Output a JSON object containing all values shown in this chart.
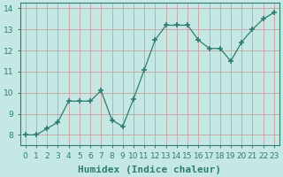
{
  "x": [
    0,
    1,
    2,
    3,
    4,
    5,
    6,
    7,
    8,
    9,
    10,
    11,
    12,
    13,
    14,
    15,
    16,
    17,
    18,
    19,
    20,
    21,
    22,
    23
  ],
  "y": [
    8.0,
    8.0,
    8.3,
    8.6,
    9.6,
    9.6,
    9.6,
    10.1,
    8.7,
    8.4,
    9.7,
    11.1,
    12.5,
    13.2,
    13.2,
    13.2,
    12.5,
    12.1,
    12.1,
    11.5,
    12.4,
    13.0,
    13.5,
    13.8
  ],
  "xlabel": "Humidex (Indice chaleur)",
  "ylim": [
    7.5,
    14.25
  ],
  "xlim": [
    -0.5,
    23.5
  ],
  "line_color": "#2e7d6e",
  "marker": "+",
  "marker_size": 4,
  "marker_lw": 1.2,
  "bg_color": "#c5e8e5",
  "grid_color": "#c8a0a0",
  "grid_linewidth": 0.6,
  "tick_label_fontsize": 6.5,
  "xlabel_fontsize": 8,
  "yticks": [
    8,
    9,
    10,
    11,
    12,
    13,
    14
  ],
  "xtick_labels": [
    "0",
    "1",
    "2",
    "3",
    "4",
    "5",
    "6",
    "7",
    "8",
    "9",
    "10",
    "11",
    "12",
    "13",
    "14",
    "15",
    "16",
    "17",
    "18",
    "19",
    "20",
    "21",
    "22",
    "23"
  ],
  "line_width": 0.9
}
